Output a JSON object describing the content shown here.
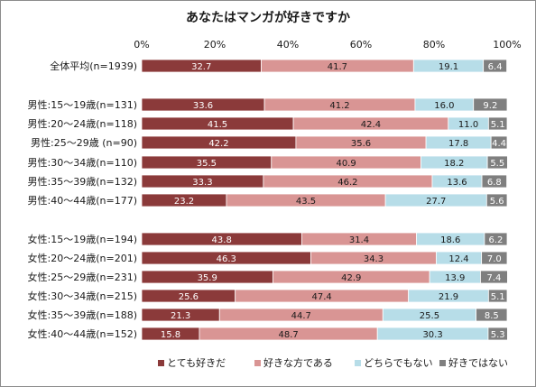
{
  "chart_data": {
    "type": "bar",
    "orientation": "horizontal",
    "stacked": true,
    "title": "あなたはマンガが好きですか",
    "xlabel": "",
    "ylabel": "",
    "xlim": [
      0,
      100
    ],
    "x_ticks": [
      "0%",
      "20%",
      "40%",
      "60%",
      "80%",
      "100%"
    ],
    "grid": false,
    "legend": "bottom",
    "categories": [
      "全体平均(n=1939)",
      "男性:15～19歳(n=131)",
      "男性:20～24歳(n=118)",
      "男性:25～29歳 (n=90)",
      "男性:30～34歳(n=110)",
      "男性:35～39歳(n=132)",
      "男性:40～44歳(n=177)",
      "女性:15～19歳(n=194)",
      "女性:20～24歳(n=201)",
      "女性:25～29歳(n=231)",
      "女性:30～34歳(n=215)",
      "女性:35～39歳(n=188)",
      "女性:40～44歳(n=152)"
    ],
    "groups": [
      [
        0
      ],
      [
        1,
        2,
        3,
        4,
        5,
        6
      ],
      [
        7,
        8,
        9,
        10,
        11,
        12
      ]
    ],
    "series": [
      {
        "name": "とても好きだ",
        "color": "#8b3a3a",
        "label_color": "#ffffff",
        "values": [
          32.7,
          33.6,
          41.5,
          42.2,
          35.5,
          33.3,
          23.2,
          43.8,
          46.3,
          35.9,
          25.6,
          21.3,
          15.8
        ]
      },
      {
        "name": "好きな方である",
        "color": "#d99594",
        "label_color": "#1a1a1a",
        "values": [
          41.7,
          41.2,
          42.4,
          35.6,
          40.9,
          46.2,
          43.5,
          31.4,
          34.3,
          42.9,
          47.4,
          44.7,
          48.7
        ]
      },
      {
        "name": "どちらでもない",
        "color": "#b7dde8",
        "label_color": "#1a1a1a",
        "values": [
          19.1,
          16.0,
          11.0,
          17.8,
          18.2,
          13.6,
          27.7,
          18.6,
          12.4,
          13.9,
          21.9,
          25.5,
          30.3
        ]
      },
      {
        "name": "好きではない",
        "color": "#7f7f7f",
        "label_color": "#ffffff",
        "values": [
          6.4,
          9.2,
          5.1,
          4.4,
          5.5,
          6.8,
          5.6,
          6.2,
          7.0,
          7.4,
          5.1,
          8.5,
          5.3
        ]
      }
    ]
  }
}
